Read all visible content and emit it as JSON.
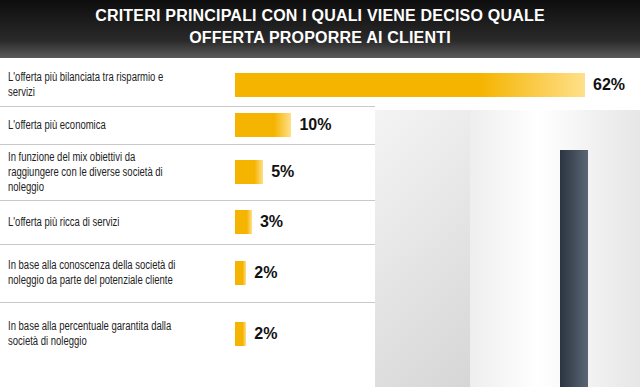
{
  "chart_data": {
    "type": "bar",
    "orientation": "horizontal",
    "title": "CRITERI PRINCIPALI CON I QUALI VIENE DECISO QUALE OFFERTA PROPORRE AI CLIENTI",
    "categories": [
      "L'offerta più bilanciata tra risparmio e servizi",
      "L'offerta più economica",
      "In funzione del mix obiettivi da raggiungere con le diverse società di noleggio",
      "L'offerta più ricca di servizi",
      "In base alla conoscenza della società di noleggio da parte del potenziale cliente",
      "In base alla percentuale garantita dalla società di noleggio"
    ],
    "values": [
      62,
      10,
      5,
      3,
      2,
      2
    ],
    "value_labels": [
      "62%",
      "10%",
      "5%",
      "3%",
      "2%",
      "2%"
    ],
    "color": "#f5b400",
    "data_labels": true,
    "tick_labels": "y",
    "grid": false
  }
}
